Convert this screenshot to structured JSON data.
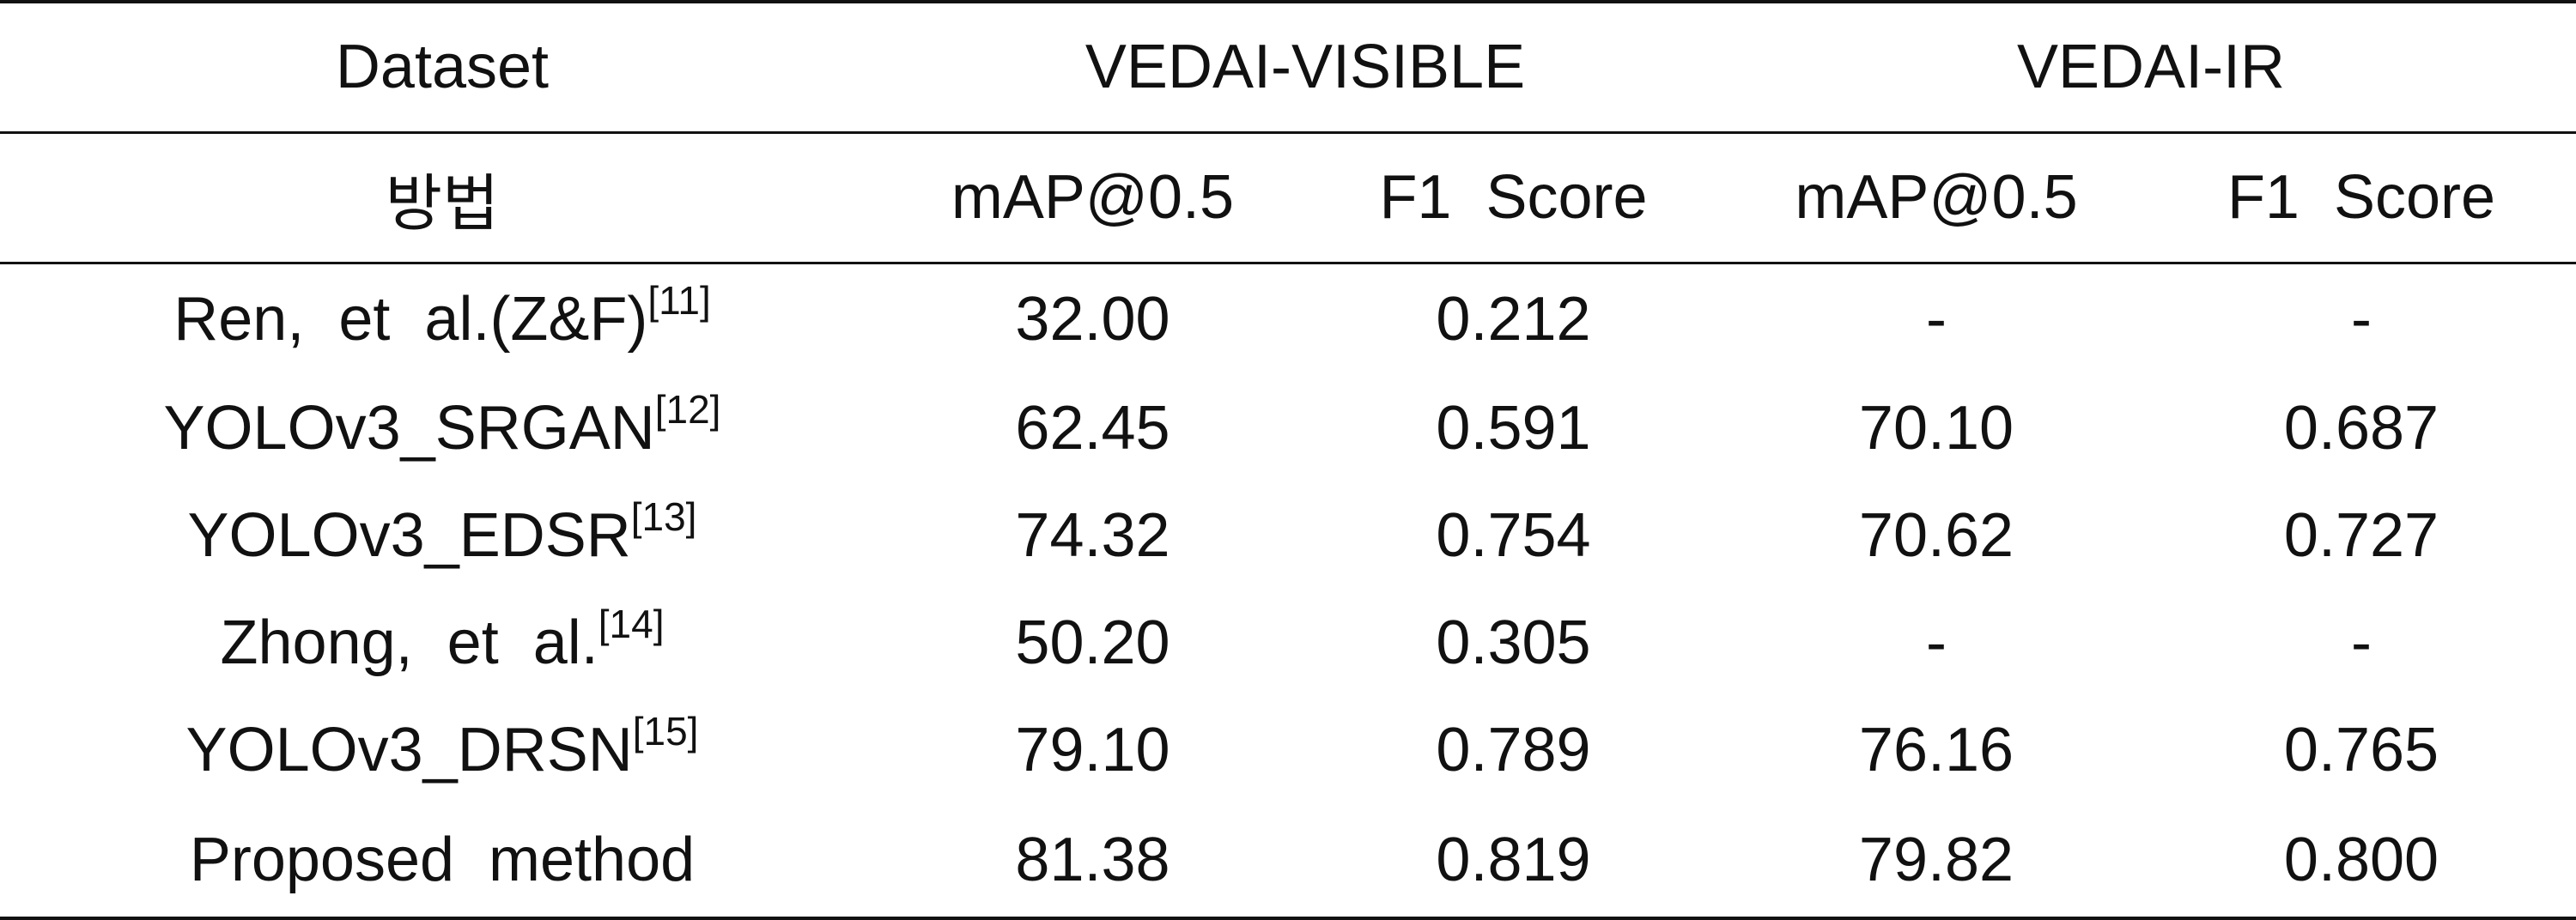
{
  "table": {
    "header_row1": {
      "dataset_label": "Dataset",
      "group_visible": "VEDAI-VISIBLE",
      "group_ir": "VEDAI-IR"
    },
    "header_row2": {
      "method_label": "방법",
      "visible_map": "mAP@0.5",
      "visible_f1": "F1  Score",
      "ir_map": "mAP@0.5",
      "ir_f1": "F1  Score"
    },
    "rows": [
      {
        "method": "Ren,  et  al.(Z&F)",
        "ref": "[11]",
        "vis_map": "32.00",
        "vis_f1": "0.212",
        "ir_map": "-",
        "ir_f1": "-"
      },
      {
        "method": "YOLOv3_SRGAN",
        "ref": "[12]",
        "vis_map": "62.45",
        "vis_f1": "0.591",
        "ir_map": "70.10",
        "ir_f1": "0.687"
      },
      {
        "method": "YOLOv3_EDSR",
        "ref": "[13]",
        "vis_map": "74.32",
        "vis_f1": "0.754",
        "ir_map": "70.62",
        "ir_f1": "0.727"
      },
      {
        "method": "Zhong,  et  al.",
        "ref": "[14]",
        "vis_map": "50.20",
        "vis_f1": "0.305",
        "ir_map": "-",
        "ir_f1": "-"
      },
      {
        "method": "YOLOv3_DRSN",
        "ref": "[15]",
        "vis_map": "79.10",
        "vis_f1": "0.789",
        "ir_map": "76.16",
        "ir_f1": "0.765"
      },
      {
        "method": "Proposed  method",
        "ref": "",
        "vis_map": "81.38",
        "vis_f1": "0.819",
        "ir_map": "79.82",
        "ir_f1": "0.800"
      }
    ]
  }
}
